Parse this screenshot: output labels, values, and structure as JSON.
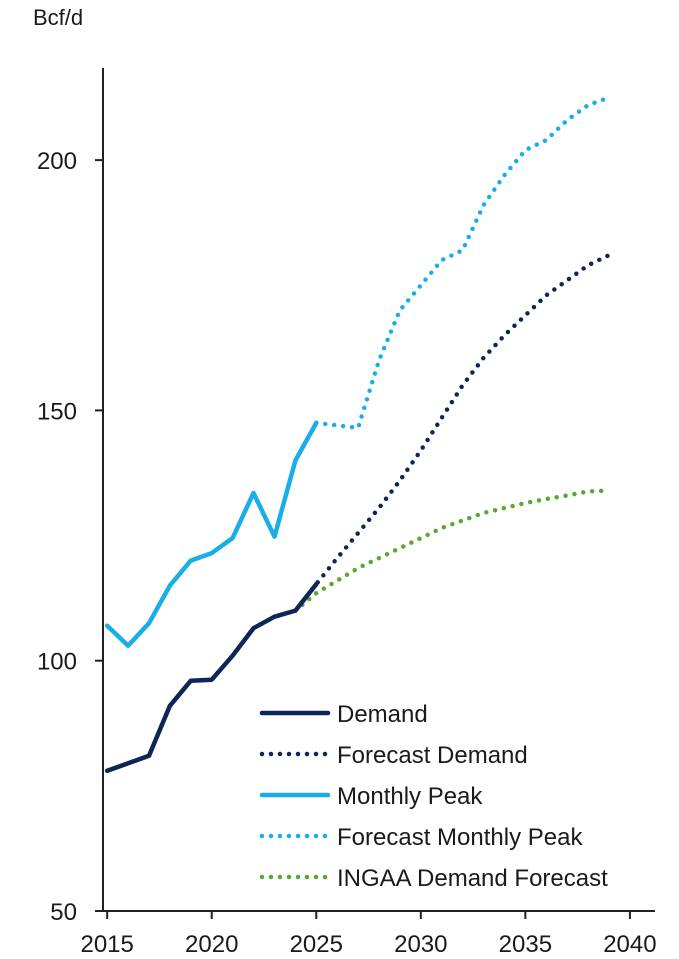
{
  "chart_data": {
    "type": "line",
    "title": "",
    "xlabel": "",
    "ylabel": "Bcf/d",
    "xlim": [
      2014.8,
      2041.2
    ],
    "ylim": [
      50,
      220
    ],
    "x_ticks": [
      2015,
      2020,
      2025,
      2030,
      2035,
      2040
    ],
    "y_ticks": [
      50,
      100,
      150,
      200
    ],
    "grid": false,
    "legend_position": "bottom-right",
    "series": [
      {
        "name": "Demand",
        "style": "solid",
        "color": "#0d2557",
        "points": [
          [
            2015,
            78
          ],
          [
            2016,
            79.5
          ],
          [
            2017,
            81
          ],
          [
            2018,
            91
          ],
          [
            2019,
            96
          ],
          [
            2020,
            96.2
          ],
          [
            2021,
            101
          ],
          [
            2022,
            106.5
          ],
          [
            2023,
            108.8
          ],
          [
            2024,
            110
          ],
          [
            2025,
            115.3
          ]
        ]
      },
      {
        "name": "Forecast Demand",
        "style": "dotted",
        "color": "#0d2557",
        "points": [
          [
            2024,
            110
          ],
          [
            2025,
            115.3
          ],
          [
            2026,
            120.5
          ],
          [
            2027,
            125.5
          ],
          [
            2028,
            130.5
          ],
          [
            2029,
            136
          ],
          [
            2030,
            142
          ],
          [
            2031,
            148.5
          ],
          [
            2032,
            155
          ],
          [
            2033,
            160.5
          ],
          [
            2034,
            165
          ],
          [
            2035,
            169
          ],
          [
            2036,
            173
          ],
          [
            2037,
            176
          ],
          [
            2038,
            179
          ],
          [
            2039,
            181
          ]
        ]
      },
      {
        "name": "Monthly Peak",
        "style": "solid",
        "color": "#1aaee8",
        "points": [
          [
            2015,
            107
          ],
          [
            2016,
            103
          ],
          [
            2017,
            107.5
          ],
          [
            2018,
            115
          ],
          [
            2019,
            120
          ],
          [
            2020,
            121.5
          ],
          [
            2021,
            124.5
          ],
          [
            2022,
            133.5
          ],
          [
            2023,
            124.8
          ],
          [
            2024,
            140
          ],
          [
            2025,
            147.5
          ]
        ]
      },
      {
        "name": "Forecast Monthly Peak",
        "style": "dotted",
        "color": "#1aaee8",
        "points": [
          [
            2025,
            147.5
          ],
          [
            2026,
            147
          ],
          [
            2027,
            146.5
          ],
          [
            2028,
            160
          ],
          [
            2029,
            170
          ],
          [
            2030,
            175
          ],
          [
            2031,
            180
          ],
          [
            2032,
            182
          ],
          [
            2033,
            191
          ],
          [
            2034,
            197
          ],
          [
            2035,
            202
          ],
          [
            2036,
            204
          ],
          [
            2037,
            208
          ],
          [
            2038,
            211
          ],
          [
            2039,
            212.5
          ]
        ]
      },
      {
        "name": "INGAA Demand Forecast",
        "style": "dotted",
        "color": "#5aa832",
        "points": [
          [
            2024,
            110
          ],
          [
            2025,
            113.5
          ],
          [
            2026,
            116
          ],
          [
            2027,
            118.5
          ],
          [
            2028,
            120.5
          ],
          [
            2029,
            122.5
          ],
          [
            2030,
            124.5
          ],
          [
            2031,
            126.5
          ],
          [
            2032,
            128
          ],
          [
            2033,
            129.5
          ],
          [
            2034,
            130.5
          ],
          [
            2035,
            131.5
          ],
          [
            2036,
            132.3
          ],
          [
            2037,
            133
          ],
          [
            2038,
            133.8
          ],
          [
            2039,
            134
          ]
        ]
      }
    ]
  }
}
